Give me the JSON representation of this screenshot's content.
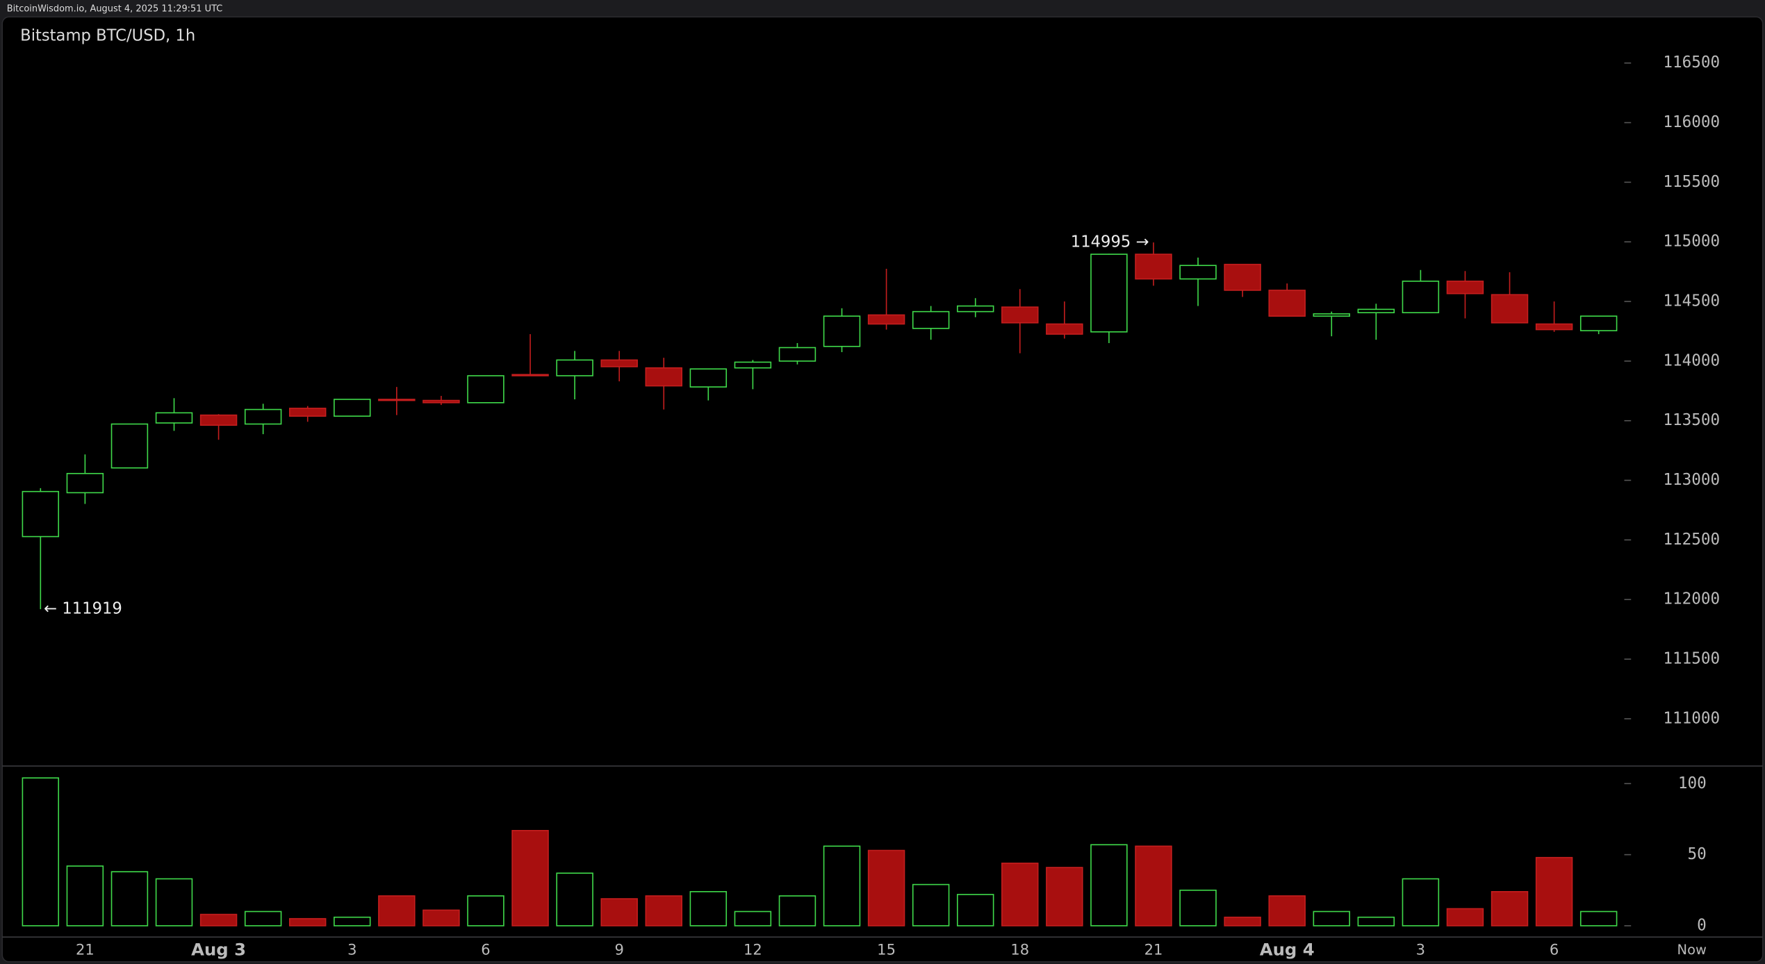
{
  "chart_data": {
    "type": "candlestick",
    "source": "BitcoinWisdom.io, August 4, 2025 11:29:51 UTC",
    "title": "Bitstamp BTC/USD, 1h",
    "categories": [
      null,
      "21",
      null,
      null,
      "Aug 3",
      null,
      null,
      "3",
      null,
      null,
      "6",
      null,
      null,
      "9",
      null,
      null,
      "12",
      null,
      null,
      "15",
      null,
      null,
      "18",
      null,
      null,
      "21",
      null,
      null,
      "Aug 4",
      null,
      null,
      "3",
      null,
      null,
      "6",
      null
    ],
    "now_label": "Now",
    "open": [
      112528,
      112896,
      113104,
      113481,
      113547,
      113472,
      113604,
      113538,
      113679,
      113670,
      113651,
      113887,
      113877,
      114009,
      113943,
      113783,
      113943,
      114000,
      114123,
      114387,
      114274,
      114415,
      114453,
      114311,
      114245,
      114896,
      114689,
      114811,
      114594,
      114377,
      114406,
      114406,
      114670,
      114557,
      114311,
      114255
    ],
    "high": [
      112934,
      113217,
      113472,
      113689,
      113555,
      113642,
      113623,
      113679,
      113783,
      113708,
      113877,
      114226,
      114085,
      114085,
      114028,
      113934,
      114009,
      114151,
      114443,
      114774,
      114462,
      114528,
      114604,
      114500,
      114900,
      114995,
      114868,
      114811,
      114651,
      114415,
      114481,
      114764,
      114755,
      114745,
      114500,
      114377
    ],
    "low": [
      111919,
      112802,
      113104,
      113415,
      113340,
      113387,
      113491,
      113538,
      113547,
      113632,
      113651,
      113877,
      113679,
      113830,
      113594,
      113670,
      113764,
      113972,
      114075,
      114264,
      114179,
      114368,
      114066,
      114189,
      114151,
      114632,
      114462,
      114538,
      114377,
      114208,
      114179,
      114406,
      114358,
      114321,
      114245,
      114226
    ],
    "close": [
      112906,
      113057,
      113472,
      113566,
      113462,
      113594,
      113538,
      113679,
      113670,
      113651,
      113877,
      113877,
      114009,
      113953,
      113792,
      113934,
      113991,
      114113,
      114377,
      114311,
      114415,
      114462,
      114321,
      114226,
      114896,
      114689,
      114802,
      114594,
      114377,
      114396,
      114434,
      114670,
      114566,
      114321,
      114264,
      114377
    ],
    "volume": [
      104,
      42,
      38,
      33,
      8,
      10,
      5,
      6,
      21,
      11,
      21,
      67,
      37,
      19,
      21,
      24,
      10,
      21,
      56,
      53,
      29,
      22,
      44,
      41,
      57,
      56,
      25,
      6,
      21,
      10,
      6,
      33,
      12,
      24,
      48,
      10
    ],
    "annotations": [
      "114995 →",
      "← 111919"
    ],
    "ylim": [
      110613,
      116887
    ],
    "yticks": [
      111000,
      111500,
      112000,
      112500,
      113000,
      113500,
      114000,
      114500,
      115000,
      115500,
      116000,
      116500
    ],
    "volume_ylim": [
      0,
      110
    ],
    "volume_yticks": [
      0,
      50,
      100
    ],
    "up_color": "#3fd94a",
    "down_color": "#a80f0f"
  }
}
